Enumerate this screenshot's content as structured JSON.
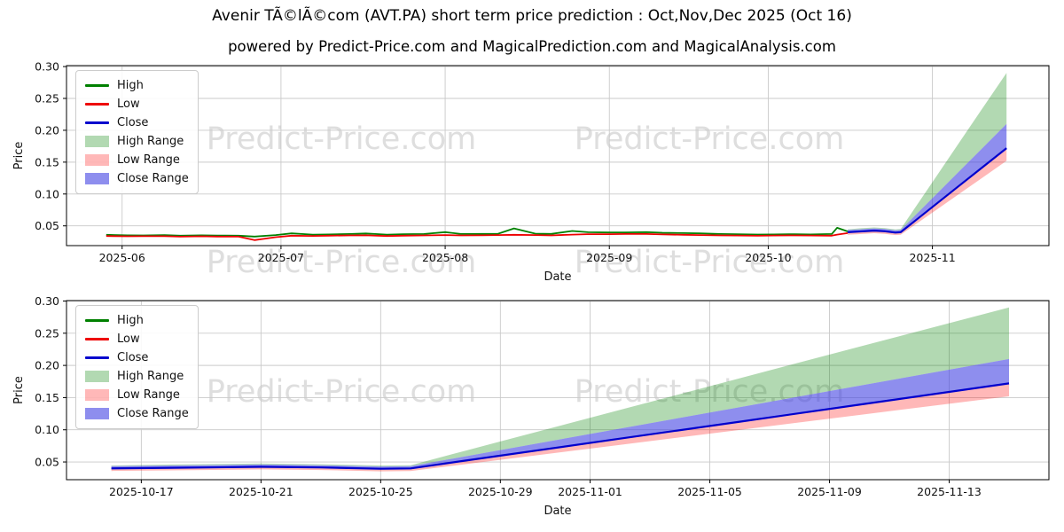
{
  "figure": {
    "title": "Avenir TÃ©lÃ©com (AVT.PA) short term price prediction : Oct,Nov,Dec 2025 (Oct 16)",
    "subtitle": "powered by Predict-Price.com and MagicalPrediction.com and MagicalAnalysis.com",
    "watermark": "Predict-Price.com",
    "background": "#ffffff"
  },
  "colors": {
    "high": "#008000",
    "low": "#ee0000",
    "close": "#0000cd",
    "high_range": "rgba(0,128,0,0.30)",
    "low_range": "rgba(255,0,0,0.28)",
    "close_range": "rgba(60,60,225,0.58)",
    "grid": "#c9c9c9",
    "axis": "#000000",
    "text": "#111111",
    "watermark": "#dedede"
  },
  "legend": [
    {
      "label": "High",
      "type": "line",
      "color": "high"
    },
    {
      "label": "Low",
      "type": "line",
      "color": "low"
    },
    {
      "label": "Close",
      "type": "line",
      "color": "close"
    },
    {
      "label": "High Range",
      "type": "patch",
      "color": "high_range"
    },
    {
      "label": "Low Range",
      "type": "patch",
      "color": "low_range"
    },
    {
      "label": "Close Range",
      "type": "patch",
      "color": "close_range"
    }
  ],
  "history": {
    "dates": [
      "2025-05-29",
      "2025-06-02",
      "2025-06-05",
      "2025-06-09",
      "2025-06-12",
      "2025-06-16",
      "2025-06-19",
      "2025-06-23",
      "2025-06-26",
      "2025-06-30",
      "2025-07-03",
      "2025-07-07",
      "2025-07-10",
      "2025-07-14",
      "2025-07-17",
      "2025-07-21",
      "2025-07-24",
      "2025-07-28",
      "2025-08-01",
      "2025-08-04",
      "2025-08-08",
      "2025-08-11",
      "2025-08-14",
      "2025-08-18",
      "2025-08-21",
      "2025-08-25",
      "2025-08-28",
      "2025-09-01",
      "2025-09-04",
      "2025-09-08",
      "2025-09-11",
      "2025-09-15",
      "2025-09-18",
      "2025-09-22",
      "2025-09-25",
      "2025-09-29",
      "2025-10-02",
      "2025-10-06",
      "2025-10-09",
      "2025-10-13",
      "2025-10-14",
      "2025-10-16"
    ],
    "high": [
      0.036,
      0.0352,
      0.035,
      0.0354,
      0.0346,
      0.0352,
      0.0348,
      0.0346,
      0.0332,
      0.0356,
      0.0382,
      0.0362,
      0.0366,
      0.0372,
      0.038,
      0.0362,
      0.037,
      0.0372,
      0.0402,
      0.0372,
      0.0374,
      0.0376,
      0.046,
      0.0378,
      0.0374,
      0.042,
      0.04,
      0.0396,
      0.0398,
      0.0402,
      0.0392,
      0.0386,
      0.0382,
      0.0372,
      0.037,
      0.0364,
      0.0366,
      0.037,
      0.0366,
      0.0372,
      0.047,
      0.0412
    ],
    "low": [
      0.034,
      0.0336,
      0.0338,
      0.0338,
      0.033,
      0.0336,
      0.0332,
      0.033,
      0.0276,
      0.0322,
      0.0346,
      0.0342,
      0.0346,
      0.035,
      0.0352,
      0.034,
      0.0346,
      0.035,
      0.0356,
      0.035,
      0.0352,
      0.0356,
      0.036,
      0.0356,
      0.035,
      0.0362,
      0.037,
      0.037,
      0.0372,
      0.0372,
      0.0366,
      0.036,
      0.0356,
      0.035,
      0.0348,
      0.0344,
      0.0348,
      0.035,
      0.0348,
      0.0346,
      0.0362,
      0.0386
    ]
  },
  "prediction": {
    "dates": [
      "2025-10-16",
      "2025-10-18",
      "2025-10-21",
      "2025-10-23",
      "2025-10-25",
      "2025-10-26",
      "2025-10-29",
      "2025-11-02",
      "2025-11-06",
      "2025-11-10",
      "2025-11-15"
    ],
    "close": [
      0.04,
      0.041,
      0.0425,
      0.0415,
      0.0395,
      0.04,
      0.0598,
      0.0862,
      0.1126,
      0.139,
      0.172
    ],
    "close_upper": [
      0.0435,
      0.0445,
      0.046,
      0.045,
      0.043,
      0.0435,
      0.0685,
      0.1018,
      0.1352,
      0.1685,
      0.21
    ],
    "high_upper": [
      0.0445,
      0.046,
      0.0475,
      0.0465,
      0.0445,
      0.045,
      0.0818,
      0.1309,
      0.18,
      0.2291,
      0.29
    ],
    "low_lower": [
      0.036,
      0.037,
      0.0385,
      0.0375,
      0.0355,
      0.036,
      0.0534,
      0.0766,
      0.0998,
      0.123,
      0.152
    ]
  },
  "chart_data": [
    {
      "id": "top",
      "type": "line",
      "xlabel": "Date",
      "ylabel": "Price",
      "box": {
        "l": 75,
        "t": 74,
        "r": 1183,
        "b": 277
      },
      "xlim": [
        "2025-05-21T12:00:00Z",
        "2025-11-23T00:00:00Z"
      ],
      "ylim": [
        0.019,
        0.3015
      ],
      "xticks": [
        {
          "date": "2025-06-01",
          "label": "2025-06"
        },
        {
          "date": "2025-07-01",
          "label": "2025-07"
        },
        {
          "date": "2025-08-01",
          "label": "2025-08"
        },
        {
          "date": "2025-09-01",
          "label": "2025-09"
        },
        {
          "date": "2025-10-01",
          "label": "2025-10"
        },
        {
          "date": "2025-11-01",
          "label": "2025-11"
        }
      ],
      "yticks": [
        {
          "v": 0.05,
          "label": "0.05"
        },
        {
          "v": 0.1,
          "label": "0.10"
        },
        {
          "v": 0.15,
          "label": "0.15"
        },
        {
          "v": 0.2,
          "label": "0.20"
        },
        {
          "v": 0.25,
          "label": "0.25"
        },
        {
          "v": 0.3,
          "label": "0.30"
        }
      ],
      "bands": [
        {
          "name": "High Range",
          "color": "high_range",
          "data": "prediction",
          "upper": "high_upper",
          "lower": "close_upper"
        },
        {
          "name": "Low Range",
          "color": "low_range",
          "data": "prediction",
          "upper": "close",
          "lower": "low_lower"
        },
        {
          "name": "Close Range",
          "color": "close_range",
          "data": "prediction",
          "upper": "close_upper",
          "lower": "close"
        }
      ],
      "series": [
        {
          "name": "High",
          "color": "high",
          "data": "history",
          "y": "high",
          "width": 1.8
        },
        {
          "name": "Low",
          "color": "low",
          "data": "history",
          "y": "low",
          "width": 1.8
        },
        {
          "name": "Close",
          "color": "close",
          "data": "prediction",
          "y": "close",
          "width": 2.2
        }
      ]
    },
    {
      "id": "bottom",
      "type": "line",
      "xlabel": "Date",
      "ylabel": "Price",
      "box": {
        "l": 75,
        "t": 339,
        "r": 1183,
        "b": 541
      },
      "xlim": [
        "2025-10-14T12:00:00Z",
        "2025-11-16T08:00:00Z"
      ],
      "ylim": [
        0.0225,
        0.3007
      ],
      "xticks": [
        {
          "date": "2025-10-17",
          "label": "2025-10-17"
        },
        {
          "date": "2025-10-21",
          "label": "2025-10-21"
        },
        {
          "date": "2025-10-25",
          "label": "2025-10-25"
        },
        {
          "date": "2025-10-29",
          "label": "2025-10-29"
        },
        {
          "date": "2025-11-01",
          "label": "2025-11-01"
        },
        {
          "date": "2025-11-05",
          "label": "2025-11-05"
        },
        {
          "date": "2025-11-09",
          "label": "2025-11-09"
        },
        {
          "date": "2025-11-13",
          "label": "2025-11-13"
        }
      ],
      "yticks": [
        {
          "v": 0.05,
          "label": "0.05"
        },
        {
          "v": 0.1,
          "label": "0.10"
        },
        {
          "v": 0.15,
          "label": "0.15"
        },
        {
          "v": 0.2,
          "label": "0.20"
        },
        {
          "v": 0.25,
          "label": "0.25"
        },
        {
          "v": 0.3,
          "label": "0.30"
        }
      ],
      "bands": [
        {
          "name": "High Range",
          "color": "high_range",
          "data": "prediction",
          "upper": "high_upper",
          "lower": "close_upper"
        },
        {
          "name": "Low Range",
          "color": "low_range",
          "data": "prediction",
          "upper": "close",
          "lower": "low_lower"
        },
        {
          "name": "Close Range",
          "color": "close_range",
          "data": "prediction",
          "upper": "close_upper",
          "lower": "close"
        }
      ],
      "series": [
        {
          "name": "Close",
          "color": "close",
          "data": "prediction",
          "y": "close",
          "width": 2.2
        }
      ]
    }
  ]
}
